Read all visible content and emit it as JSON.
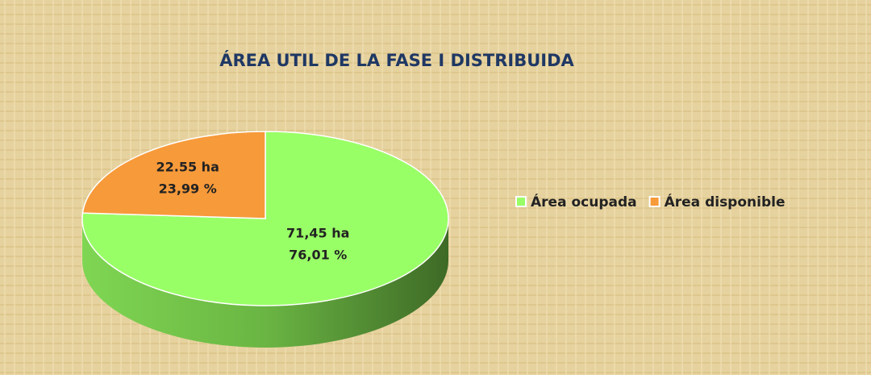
{
  "chart_data": {
    "type": "pie",
    "title": "ÁREA UTIL DE LA FASE I DISTRIBUIDA",
    "categories": [
      "Área ocupada",
      "Área disponible"
    ],
    "values": [
      76.01,
      23.99
    ],
    "value_labels": [
      "76,01 %",
      "23,99 %"
    ],
    "area_labels": [
      "71,45 ha",
      "22.55 ha"
    ],
    "colors": [
      "#99ff66",
      "#f79a3a"
    ],
    "legend": "right"
  }
}
